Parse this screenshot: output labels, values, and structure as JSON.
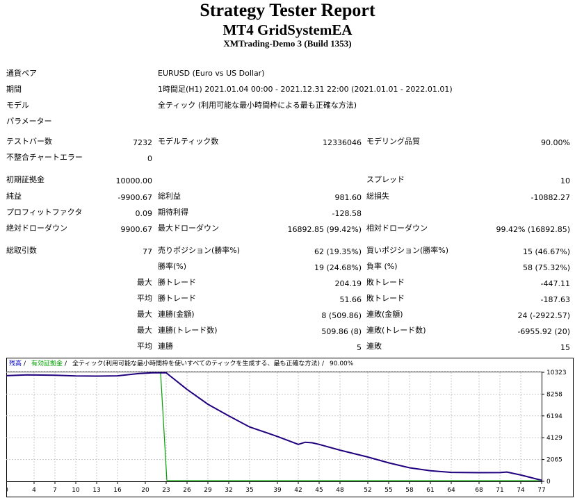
{
  "header": {
    "title": "Strategy Tester Report",
    "subtitle": "MT4 GridSystemEA",
    "server": "XMTrading-Demo 3 (Build 1353)"
  },
  "info": [
    {
      "label": "通貨ペア",
      "value": "EURUSD (Euro vs US Dollar)"
    },
    {
      "label": "期間",
      "value": "1時間足(H1) 2021.01.04 00:00 - 2021.12.31 22:00 (2021.01.01 - 2022.01.01)"
    },
    {
      "label": "モデル",
      "value": "全ティック (利用可能な最小時間枠による最も正確な方法)"
    },
    {
      "label": "パラメーター",
      "value": ""
    }
  ],
  "stats": {
    "bars_label": "テストバー数",
    "bars": "7232",
    "ticks_label": "モデルティック数",
    "ticks": "12336046",
    "quality_label": "モデリング品質",
    "quality": "90.00%",
    "mismatch_label": "不整合チャートエラー",
    "mismatch": "0",
    "deposit_label": "初期証拠金",
    "deposit": "10000.00",
    "spread_label": "スプレッド",
    "spread": "10",
    "net_label": "純益",
    "net": "-9900.67",
    "gross_profit_label": "総利益",
    "gross_profit": "981.60",
    "gross_loss_label": "総損失",
    "gross_loss": "-10882.27",
    "pf_label": "プロフィットファクタ",
    "pf": "0.09",
    "expected_label": "期待利得",
    "expected": "-128.58",
    "abs_dd_label": "絶対ドローダウン",
    "abs_dd": "9900.67",
    "max_dd_label": "最大ドローダウン",
    "max_dd": "16892.85 (99.42%)",
    "rel_dd_label": "相対ドローダウン",
    "rel_dd": "99.42% (16892.85)",
    "total_label": "総取引数",
    "total": "77",
    "short_label": "売りポジション(勝率%)",
    "short": "62 (19.35%)",
    "long_label": "買いポジション(勝率%)",
    "long": "15 (46.67%)",
    "win_pct_label": "勝率(%)",
    "win_pct": "19 (24.68%)",
    "loss_pct_label": "負率 (%)",
    "loss_pct": "58 (75.32%)",
    "max_label": "最大",
    "avg_label": "平均",
    "largest_win_label": "勝トレード",
    "largest_win": "204.19",
    "largest_loss_label": "敗トレード",
    "largest_loss": "-447.11",
    "avg_win_label": "勝トレード",
    "avg_win": "51.66",
    "avg_loss_label": "敗トレード",
    "avg_loss": "-187.63",
    "max_cons_win_label": "連勝(金額)",
    "max_cons_win": "8 (509.86)",
    "max_cons_loss_label": "連敗(金額)",
    "max_cons_loss": "24 (-2922.57)",
    "max_cons_profit_label": "連勝(トレード数)",
    "max_cons_profit": "509.86 (8)",
    "max_cons_lossamt_label": "連敗(トレード数)",
    "max_cons_lossamt": "-6955.92 (20)",
    "avg_cons_win_label": "連勝",
    "avg_cons_win": "5",
    "avg_cons_loss_label": "連敗",
    "avg_cons_loss": "15"
  },
  "chart_data": {
    "type": "line",
    "legend": [
      {
        "text": "残高",
        "color": "#0000c0"
      },
      {
        "text": "有効証拠金",
        "color": "#00a000"
      },
      {
        "text": "全ティック(利用可能な最小時間枠を使いすべてのティックを生成する、最も正確な方法)",
        "color": "#000000"
      },
      {
        "text": "90.00%",
        "color": "#000000"
      }
    ],
    "x_ticks": [
      "0",
      "4",
      "7",
      "10",
      "13",
      "16",
      "20",
      "23",
      "26",
      "29",
      "32",
      "35",
      "39",
      "42",
      "45",
      "48",
      "52",
      "55",
      "58",
      "61",
      "64",
      "68",
      "71",
      "74",
      "77"
    ],
    "y_ticks": [
      "10323",
      "8258",
      "6194",
      "4129",
      "2065",
      "0"
    ],
    "xlim": [
      0,
      77
    ],
    "ylim": [
      0,
      10323
    ],
    "series": [
      {
        "name": "残高",
        "color": "#20007f",
        "x": [
          0,
          3,
          7,
          10,
          13,
          16,
          19,
          21,
          23,
          26,
          29,
          32,
          35,
          39,
          42,
          43,
          44,
          45,
          48,
          52,
          55,
          58,
          61,
          64,
          68,
          71,
          72,
          74,
          77
        ],
        "y": [
          10000,
          10080,
          10050,
          9980,
          9960,
          9990,
          10200,
          10280,
          10280,
          8700,
          7300,
          6200,
          5150,
          4250,
          3500,
          3700,
          3650,
          3500,
          2950,
          2300,
          1750,
          1280,
          1000,
          850,
          820,
          830,
          880,
          600,
          100
        ]
      },
      {
        "name": "有効証拠金",
        "color": "#00a000",
        "x": [
          0,
          3,
          7,
          10,
          13,
          16,
          19,
          21,
          22.2,
          23.1,
          77
        ],
        "y": [
          10000,
          10080,
          10050,
          9980,
          9960,
          9990,
          10200,
          10280,
          10280,
          80,
          80
        ]
      }
    ]
  }
}
